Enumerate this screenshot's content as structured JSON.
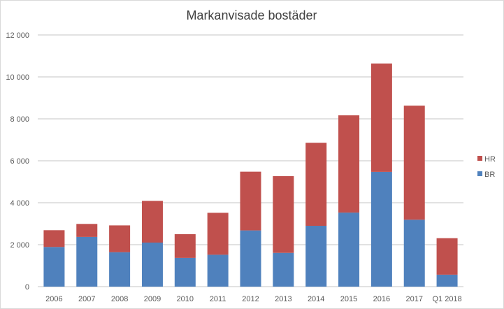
{
  "chart_data": {
    "type": "bar",
    "stacked": true,
    "title": "Markanvisade bostäder",
    "xlabel": "",
    "ylabel": "",
    "ylim": [
      0,
      12000
    ],
    "yticks": [
      0,
      2000,
      4000,
      6000,
      8000,
      10000,
      12000
    ],
    "ytick_labels": [
      "0",
      "2 000",
      "4 000",
      "6 000",
      "8 000",
      "10 000",
      "12 000"
    ],
    "grid": true,
    "legend_position": "right",
    "categories": [
      "2006",
      "2007",
      "2008",
      "2009",
      "2010",
      "2011",
      "2012",
      "2013",
      "2014",
      "2015",
      "2016",
      "2017",
      "Q1 2018"
    ],
    "series": [
      {
        "name": "BR",
        "color": "#4f81bd",
        "values": [
          1890,
          2370,
          1640,
          2100,
          1370,
          1520,
          2680,
          1610,
          2900,
          3530,
          5470,
          3190,
          570
        ]
      },
      {
        "name": "HR",
        "color": "#c0504d",
        "values": [
          800,
          620,
          1280,
          1990,
          1130,
          2000,
          2800,
          3660,
          3960,
          4640,
          5170,
          5440,
          1740
        ]
      }
    ]
  }
}
